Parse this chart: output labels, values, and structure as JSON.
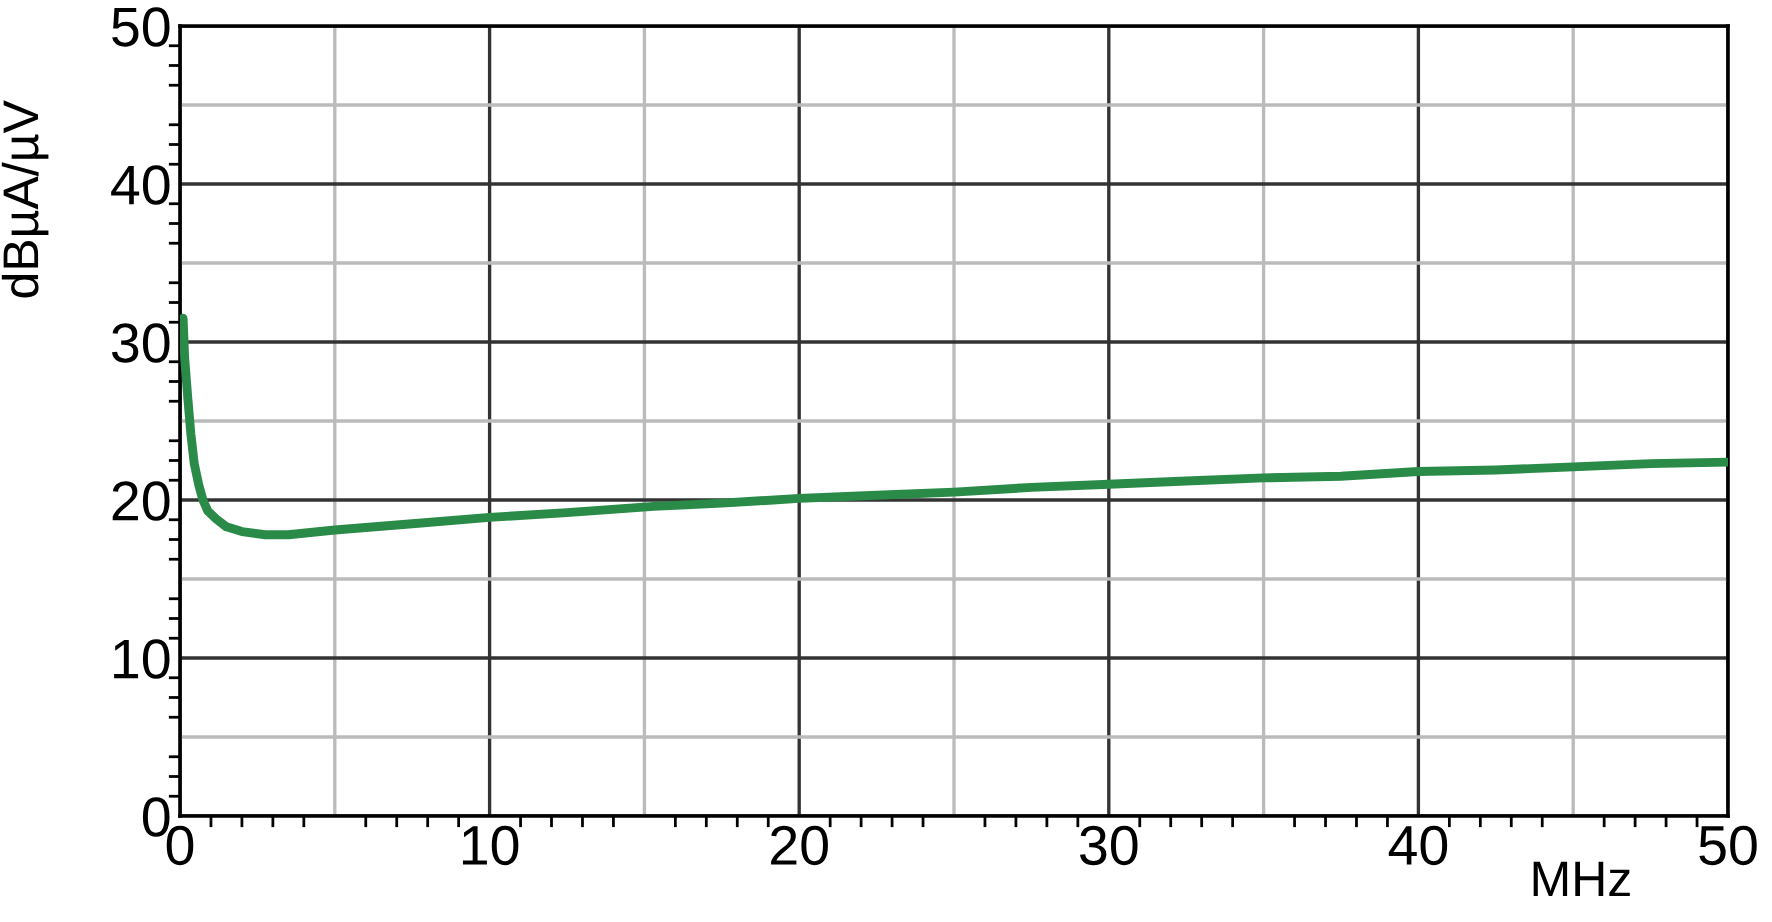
{
  "chart_data": {
    "type": "line",
    "xlabel": "MHz",
    "ylabel": "dBµA/µV",
    "series": [
      {
        "color": "#2a8a48",
        "x": [
          0.1,
          0.15,
          0.25,
          0.35,
          0.46,
          0.6,
          0.74,
          0.9,
          1.17,
          1.5,
          2.0,
          2.75,
          3.5,
          5,
          7.5,
          10,
          12.5,
          15.3,
          17.5,
          20,
          22.5,
          25,
          27.5,
          30,
          32.5,
          35,
          37.5,
          40,
          42.5,
          45,
          47.5,
          50
        ],
        "values": [
          31.5,
          29.0,
          26.5,
          24.2,
          22.3,
          21.0,
          20.0,
          19.3,
          18.8,
          18.3,
          18.0,
          17.8,
          17.8,
          18.1,
          18.5,
          18.9,
          19.2,
          19.6,
          19.8,
          20.1,
          20.3,
          20.5,
          20.8,
          21.0,
          21.2,
          21.4,
          21.5,
          21.8,
          21.9,
          22.1,
          22.3,
          22.4
        ]
      }
    ],
    "xlim": [
      0,
      50
    ],
    "ylim": [
      0,
      50
    ],
    "xticks": [
      0,
      {
        "value": 5,
        "label": null
      },
      10,
      {
        "value": 15,
        "label": null
      },
      20,
      {
        "value": 25,
        "label": null
      },
      30,
      {
        "value": 35,
        "label": null
      },
      40,
      {
        "value": 45,
        "label": null
      },
      50
    ],
    "yticks": [
      0,
      {
        "value": 5,
        "label": null
      },
      10,
      {
        "value": 15,
        "label": null
      },
      20,
      {
        "value": 25,
        "label": null
      },
      30,
      {
        "value": 35,
        "label": null
      },
      40,
      {
        "value": 45,
        "label": null
      },
      50
    ],
    "grid": true,
    "marker": "none",
    "line_style": "solid",
    "legend": false
  }
}
